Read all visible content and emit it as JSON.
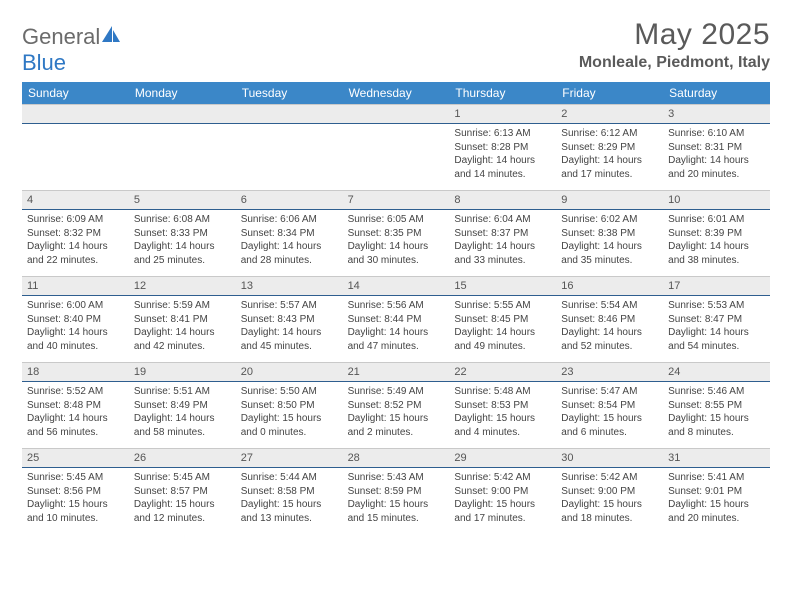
{
  "brand": {
    "name_gray": "General",
    "name_blue": "Blue"
  },
  "title": "May 2025",
  "location": "Monleale, Piedmont, Italy",
  "header_color": "#3b87c8",
  "daynum_bg": "#ececec",
  "daynum_border_bottom": "#2e5e8f",
  "dow": [
    "Sunday",
    "Monday",
    "Tuesday",
    "Wednesday",
    "Thursday",
    "Friday",
    "Saturday"
  ],
  "weeks": [
    {
      "nums": [
        "",
        "",
        "",
        "",
        "1",
        "2",
        "3"
      ],
      "cells": [
        null,
        null,
        null,
        null,
        {
          "sunrise": "6:13 AM",
          "sunset": "8:28 PM",
          "daylight": "14 hours and 14 minutes."
        },
        {
          "sunrise": "6:12 AM",
          "sunset": "8:29 PM",
          "daylight": "14 hours and 17 minutes."
        },
        {
          "sunrise": "6:10 AM",
          "sunset": "8:31 PM",
          "daylight": "14 hours and 20 minutes."
        }
      ]
    },
    {
      "nums": [
        "4",
        "5",
        "6",
        "7",
        "8",
        "9",
        "10"
      ],
      "cells": [
        {
          "sunrise": "6:09 AM",
          "sunset": "8:32 PM",
          "daylight": "14 hours and 22 minutes."
        },
        {
          "sunrise": "6:08 AM",
          "sunset": "8:33 PM",
          "daylight": "14 hours and 25 minutes."
        },
        {
          "sunrise": "6:06 AM",
          "sunset": "8:34 PM",
          "daylight": "14 hours and 28 minutes."
        },
        {
          "sunrise": "6:05 AM",
          "sunset": "8:35 PM",
          "daylight": "14 hours and 30 minutes."
        },
        {
          "sunrise": "6:04 AM",
          "sunset": "8:37 PM",
          "daylight": "14 hours and 33 minutes."
        },
        {
          "sunrise": "6:02 AM",
          "sunset": "8:38 PM",
          "daylight": "14 hours and 35 minutes."
        },
        {
          "sunrise": "6:01 AM",
          "sunset": "8:39 PM",
          "daylight": "14 hours and 38 minutes."
        }
      ]
    },
    {
      "nums": [
        "11",
        "12",
        "13",
        "14",
        "15",
        "16",
        "17"
      ],
      "cells": [
        {
          "sunrise": "6:00 AM",
          "sunset": "8:40 PM",
          "daylight": "14 hours and 40 minutes."
        },
        {
          "sunrise": "5:59 AM",
          "sunset": "8:41 PM",
          "daylight": "14 hours and 42 minutes."
        },
        {
          "sunrise": "5:57 AM",
          "sunset": "8:43 PM",
          "daylight": "14 hours and 45 minutes."
        },
        {
          "sunrise": "5:56 AM",
          "sunset": "8:44 PM",
          "daylight": "14 hours and 47 minutes."
        },
        {
          "sunrise": "5:55 AM",
          "sunset": "8:45 PM",
          "daylight": "14 hours and 49 minutes."
        },
        {
          "sunrise": "5:54 AM",
          "sunset": "8:46 PM",
          "daylight": "14 hours and 52 minutes."
        },
        {
          "sunrise": "5:53 AM",
          "sunset": "8:47 PM",
          "daylight": "14 hours and 54 minutes."
        }
      ]
    },
    {
      "nums": [
        "18",
        "19",
        "20",
        "21",
        "22",
        "23",
        "24"
      ],
      "cells": [
        {
          "sunrise": "5:52 AM",
          "sunset": "8:48 PM",
          "daylight": "14 hours and 56 minutes."
        },
        {
          "sunrise": "5:51 AM",
          "sunset": "8:49 PM",
          "daylight": "14 hours and 58 minutes."
        },
        {
          "sunrise": "5:50 AM",
          "sunset": "8:50 PM",
          "daylight": "15 hours and 0 minutes."
        },
        {
          "sunrise": "5:49 AM",
          "sunset": "8:52 PM",
          "daylight": "15 hours and 2 minutes."
        },
        {
          "sunrise": "5:48 AM",
          "sunset": "8:53 PM",
          "daylight": "15 hours and 4 minutes."
        },
        {
          "sunrise": "5:47 AM",
          "sunset": "8:54 PM",
          "daylight": "15 hours and 6 minutes."
        },
        {
          "sunrise": "5:46 AM",
          "sunset": "8:55 PM",
          "daylight": "15 hours and 8 minutes."
        }
      ]
    },
    {
      "nums": [
        "25",
        "26",
        "27",
        "28",
        "29",
        "30",
        "31"
      ],
      "cells": [
        {
          "sunrise": "5:45 AM",
          "sunset": "8:56 PM",
          "daylight": "15 hours and 10 minutes."
        },
        {
          "sunrise": "5:45 AM",
          "sunset": "8:57 PM",
          "daylight": "15 hours and 12 minutes."
        },
        {
          "sunrise": "5:44 AM",
          "sunset": "8:58 PM",
          "daylight": "15 hours and 13 minutes."
        },
        {
          "sunrise": "5:43 AM",
          "sunset": "8:59 PM",
          "daylight": "15 hours and 15 minutes."
        },
        {
          "sunrise": "5:42 AM",
          "sunset": "9:00 PM",
          "daylight": "15 hours and 17 minutes."
        },
        {
          "sunrise": "5:42 AM",
          "sunset": "9:00 PM",
          "daylight": "15 hours and 18 minutes."
        },
        {
          "sunrise": "5:41 AM",
          "sunset": "9:01 PM",
          "daylight": "15 hours and 20 minutes."
        }
      ]
    }
  ],
  "labels": {
    "sunrise": "Sunrise: ",
    "sunset": "Sunset: ",
    "daylight": "Daylight: "
  }
}
